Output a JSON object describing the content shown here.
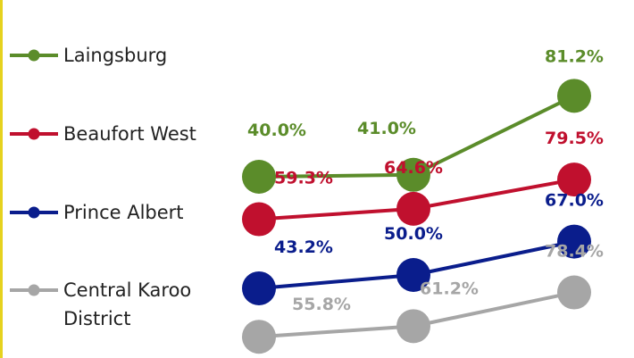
{
  "chart_data": {
    "type": "line",
    "categories": [
      null,
      null,
      null
    ],
    "series": [
      {
        "name": "Laingsburg",
        "color": "#5b8c2a",
        "values": [
          40.0,
          41.0,
          81.2
        ],
        "value_labels": [
          "40.0%",
          "41.0%",
          "81.2%"
        ]
      },
      {
        "name": "Beaufort West",
        "color": "#c0102e",
        "values": [
          59.3,
          64.6,
          79.5
        ],
        "value_labels": [
          "59.3%",
          "64.6%",
          "79.5%"
        ]
      },
      {
        "name": "Prince Albert",
        "color": "#0a1d8c",
        "values": [
          43.2,
          50.0,
          67.0
        ],
        "value_labels": [
          "43.2%",
          "50.0%",
          "67.0%"
        ]
      },
      {
        "name": "Central Karoo District",
        "color": "#a6a6a6",
        "values": [
          55.8,
          61.2,
          78.4
        ],
        "value_labels": [
          "55.8%",
          "61.2%",
          "78.4%"
        ]
      }
    ]
  }
}
